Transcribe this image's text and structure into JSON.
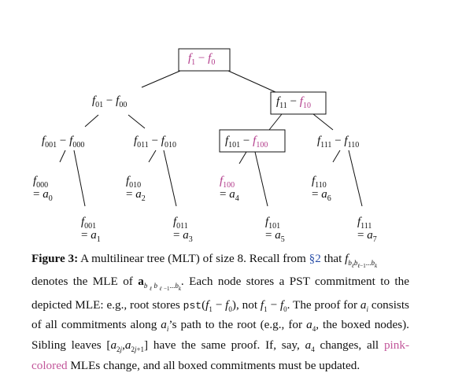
{
  "figure": {
    "nodes": {
      "root": {
        "main": "f",
        "sub1": "1",
        "op": " − ",
        "sub2": "0"
      },
      "n0": {
        "main": "f",
        "sub1": "01",
        "op": " − ",
        "sub2": "00"
      },
      "n1": {
        "main": "f",
        "sub1": "11",
        "op": " − ",
        "sub2": "10"
      },
      "n00": {
        "main": "f",
        "sub1": "001",
        "op": " − ",
        "sub2": "000"
      },
      "n01": {
        "main": "f",
        "sub1": "011",
        "op": " − ",
        "sub2": "010"
      },
      "n10": {
        "main": "f",
        "sub1": "101",
        "op": " − ",
        "sub2": "100"
      },
      "n11": {
        "main": "f",
        "sub1": "111",
        "op": " − ",
        "sub2": "110"
      }
    },
    "leaves": [
      {
        "f": "000",
        "a": "0"
      },
      {
        "f": "001",
        "a": "1"
      },
      {
        "f": "010",
        "a": "2"
      },
      {
        "f": "011",
        "a": "3"
      },
      {
        "f": "100",
        "a": "4"
      },
      {
        "f": "101",
        "a": "5"
      },
      {
        "f": "110",
        "a": "6"
      },
      {
        "f": "111",
        "a": "7"
      }
    ],
    "letters": {
      "f": "f",
      "a": "a",
      "eq": "= "
    }
  },
  "caption": {
    "label": "Figure 3:",
    "t1": " A multilinear tree (MLT) of size 8. Recall from ",
    "ref": "§2",
    "t2": " that ",
    "t3": " denotes the MLE of ",
    "t4": ". Each node stores a PST commitment to the depicted MLE: e.g., root stores ",
    "pst": "pst",
    "t5": ", not ",
    "t6": ". The proof for ",
    "t7": " consists of all commitments along ",
    "t8": "’s path to the root (e.g., for ",
    "t9": ", the boxed nodes). Sibling leaves ",
    "t10": " have the same proof. If, say, ",
    "t11": " changes, all ",
    "pinkword": "pink-colored",
    "t12": " MLEs change, and all boxed commitments must be updated."
  },
  "colors": {
    "pink": "#b23a8a",
    "link": "#2a4fa8"
  }
}
